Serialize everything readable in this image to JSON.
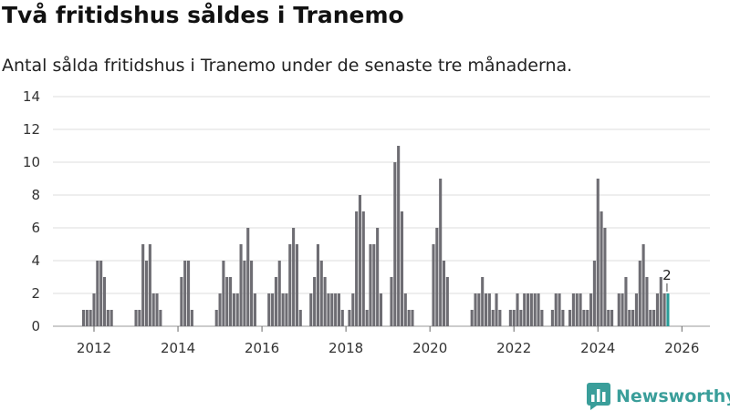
{
  "title": "Två fritidshus såldes i Tranemo",
  "subtitle": "Antal sålda fritidshus i Tranemo under de senaste tre månaderna.",
  "brand": {
    "name": "Newsworthy"
  },
  "colors": {
    "bar": "#6e6d73",
    "highlight": "#2a9d99",
    "grid": "#dddddd",
    "brand": "#3a9e9a"
  },
  "chart_data": {
    "type": "bar",
    "title": "",
    "xlabel": "",
    "ylabel": "",
    "ylim": [
      0,
      14
    ],
    "yticks": [
      0,
      2,
      4,
      6,
      8,
      10,
      12,
      14
    ],
    "xticks": [
      "2012",
      "2014",
      "2016",
      "2018",
      "2020",
      "2022",
      "2024",
      "2026"
    ],
    "grid": true,
    "start": "2011-10",
    "frequency": "monthly",
    "values": [
      1,
      1,
      1,
      2,
      4,
      4,
      3,
      1,
      1,
      0,
      0,
      0,
      0,
      0,
      0,
      1,
      1,
      5,
      4,
      5,
      2,
      2,
      1,
      0,
      0,
      0,
      0,
      0,
      3,
      4,
      4,
      1,
      0,
      0,
      0,
      0,
      0,
      0,
      1,
      2,
      4,
      3,
      3,
      2,
      2,
      5,
      4,
      6,
      4,
      2,
      0,
      0,
      0,
      2,
      2,
      3,
      4,
      2,
      2,
      5,
      6,
      5,
      1,
      0,
      0,
      2,
      3,
      5,
      4,
      3,
      2,
      2,
      2,
      2,
      1,
      0,
      1,
      2,
      7,
      8,
      7,
      1,
      5,
      5,
      6,
      2,
      0,
      0,
      3,
      10,
      11,
      7,
      2,
      1,
      1,
      0,
      0,
      0,
      0,
      0,
      5,
      6,
      9,
      4,
      3,
      0,
      0,
      0,
      0,
      0,
      0,
      1,
      2,
      2,
      3,
      2,
      2,
      1,
      2,
      1,
      0,
      0,
      1,
      1,
      2,
      1,
      2,
      2,
      2,
      2,
      2,
      1,
      0,
      0,
      1,
      2,
      2,
      1,
      0,
      1,
      2,
      2,
      2,
      1,
      1,
      2,
      4,
      9,
      7,
      6,
      1,
      1,
      0,
      2,
      2,
      3,
      1,
      1,
      2,
      4,
      5,
      3,
      1,
      1,
      2,
      3,
      2,
      2
    ],
    "highlight_label": "2"
  }
}
